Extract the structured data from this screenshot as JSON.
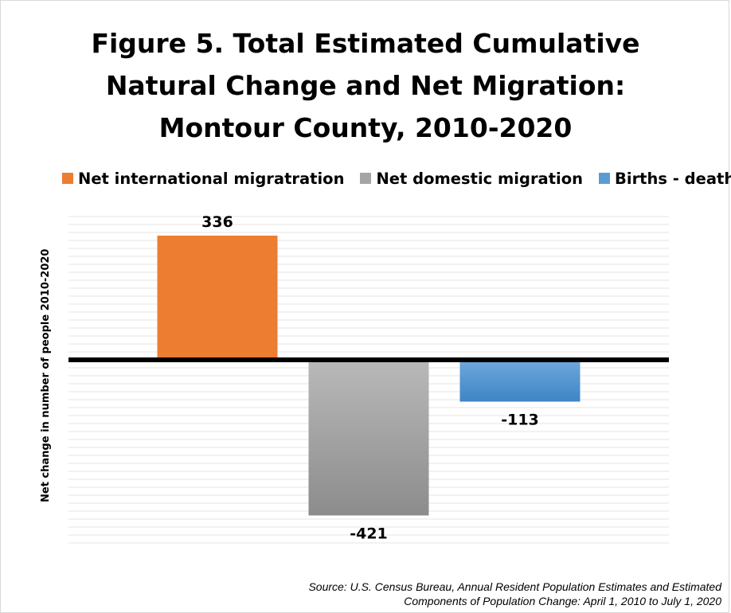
{
  "chart_data": {
    "type": "bar",
    "title_lines": [
      "Figure 5. Total Estimated Cumulative",
      "Natural Change and Net Migration:",
      "Montour County, 2010-2020"
    ],
    "ylabel": "Net change in number of people 2010-2020",
    "xlabel": "",
    "categories": [
      "Net international migratration",
      "Net domestic migration",
      "Births  - deaths"
    ],
    "values": [
      336,
      -421,
      -113
    ],
    "data_labels": [
      "336",
      "-421",
      "-113"
    ],
    "colors": [
      "#ED7D31",
      "#A5A5A5",
      "#5B9BD5"
    ],
    "legend_position": "top",
    "ylim": [
      -500,
      400
    ],
    "grid": true,
    "source_lines": [
      "Source: U.S. Census Bureau, Annual Resident Population Estimates and Estimated",
      "Components of Population Change: April 1, 2010 to July 1, 2020"
    ]
  }
}
